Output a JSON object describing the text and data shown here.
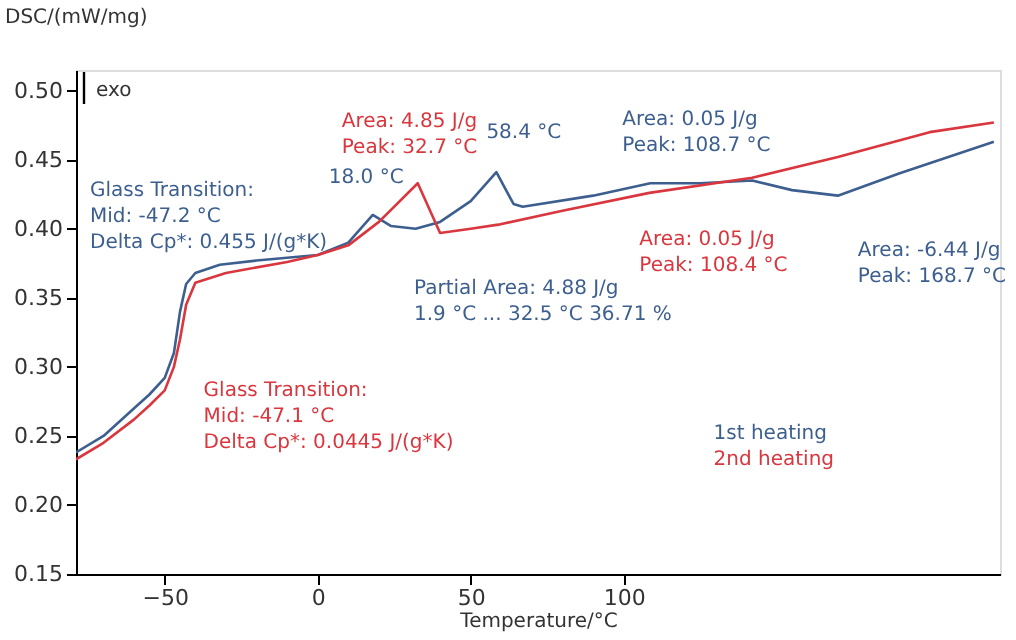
{
  "chart_data": {
    "type": "line",
    "xlabel": "Temperature/°C",
    "ylabel": "DSC/(mW/mg)",
    "xlim": [
      -79,
      223
    ],
    "xticks": [
      -50,
      0,
      50,
      100
    ],
    "ylim": [
      0.15,
      0.515
    ],
    "yticks": [
      {
        "value": 0.15,
        "label": "0.15"
      },
      {
        "value": 0.2,
        "label": "0.20"
      },
      {
        "value": 0.25,
        "label": "0.25"
      },
      {
        "value": 0.3,
        "label": "0.30"
      },
      {
        "value": 0.35,
        "label": "0.35"
      },
      {
        "value": 0.4,
        "label": "0.40"
      },
      {
        "value": 0.45,
        "label": "0.45"
      },
      {
        "value": 0.5,
        "label": "0.50"
      }
    ],
    "grid": false,
    "legend": "bottom right",
    "line_style": "solid",
    "series": [
      {
        "name": "1st heating",
        "color": "#3d5f8f",
        "x": [
          -79,
          -70,
          -60,
          -55,
          -50,
          -47,
          -45,
          -43,
          -40,
          -32,
          -20,
          0,
          10,
          18,
          24,
          32,
          40,
          50,
          58.4,
          64,
          67,
          90,
          108.7,
          125,
          142,
          155,
          170,
          190,
          221
        ],
        "values": [
          0.238,
          0.25,
          0.27,
          0.28,
          0.292,
          0.31,
          0.34,
          0.36,
          0.368,
          0.374,
          0.377,
          0.381,
          0.39,
          0.41,
          0.402,
          0.4,
          0.405,
          0.42,
          0.441,
          0.418,
          0.416,
          0.424,
          0.433,
          0.433,
          0.435,
          0.428,
          0.424,
          0.44,
          0.463
        ]
      },
      {
        "name": "2nd heating",
        "color": "#d9363e",
        "x": [
          -79,
          -70,
          -60,
          -55,
          -50,
          -47,
          -45,
          -43,
          -40,
          -30,
          -10,
          0,
          10,
          20,
          32.7,
          40,
          50,
          59,
          80,
          108.4,
          142,
          170,
          200,
          221
        ],
        "values": [
          0.233,
          0.245,
          0.262,
          0.272,
          0.283,
          0.3,
          0.32,
          0.345,
          0.361,
          0.368,
          0.376,
          0.381,
          0.388,
          0.405,
          0.433,
          0.397,
          0.4,
          0.403,
          0.413,
          0.426,
          0.437,
          0.452,
          0.47,
          0.477
        ]
      }
    ],
    "annotations": [
      "exo",
      "Glass Transition:\nMid:           -47.2 °C\nDelta Cp*:  0.455 J/(g*K)",
      {
        "text": "Glass Transition:\nMid:           -47.1 °C\nDelta Cp*:  0.0445 J/(g*K)",
        "x": -47.1,
        "y": 0.298
      },
      {
        "text": "18.0 °C",
        "x": 18.0,
        "y": 0.41
      },
      {
        "text": "Area: 4.85 J/g\nPeak: 32.7 °C",
        "x": 32.7,
        "y": 0.433
      },
      {
        "text": "58.4 °C",
        "x": 58.4,
        "y": 0.441
      },
      "Partial Area:        4.88 J/g\n1.9 °C ... 32.5 °C  36.71 %",
      {
        "text": "Area: 0.05 J/g\nPeak: 108.7 °C",
        "x": 108.7,
        "y": 0.433
      },
      {
        "text": "Area: 0.05 J/g\nPeak: 108.4 °C",
        "x": 108.4,
        "y": 0.426
      },
      {
        "text": "Area: -6.44 J/g\nPeak: 168.7 °C",
        "x": 168.7,
        "y": 0.424
      }
    ]
  }
}
